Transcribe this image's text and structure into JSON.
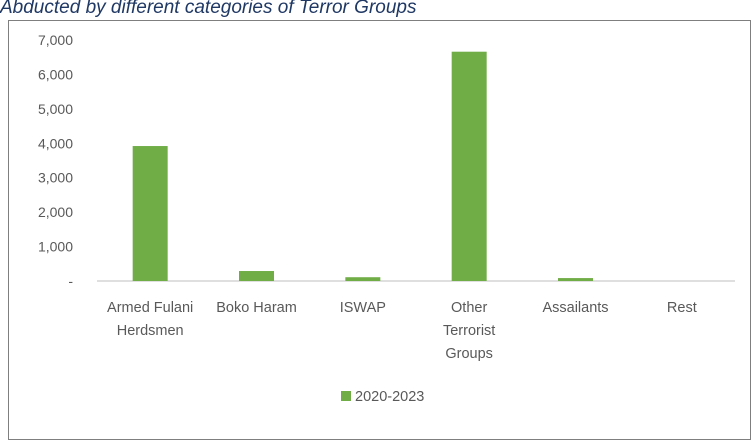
{
  "caption": "Abducted by different categories of Terror Groups",
  "colors": {
    "series": "#70ad47",
    "axis": "#bfbfbf",
    "text": "#595959"
  },
  "chart_data": {
    "type": "bar",
    "title": "",
    "xlabel": "",
    "ylabel": "",
    "ylim": [
      0,
      7000
    ],
    "y_ticks": [
      {
        "value": 0,
        "label": "-"
      },
      {
        "value": 1000,
        "label": "1,000"
      },
      {
        "value": 2000,
        "label": "2,000"
      },
      {
        "value": 3000,
        "label": "3,000"
      },
      {
        "value": 4000,
        "label": "4,000"
      },
      {
        "value": 5000,
        "label": "5,000"
      },
      {
        "value": 6000,
        "label": "6,000"
      },
      {
        "value": 7000,
        "label": "7,000"
      }
    ],
    "categories": [
      [
        "Armed Fulani",
        "Herdsmen"
      ],
      [
        "Boko Haram"
      ],
      [
        "ISWAP"
      ],
      [
        "Other",
        "Terrorist",
        "Groups"
      ],
      [
        "Assailants"
      ],
      [
        "Rest"
      ]
    ],
    "series": [
      {
        "name": "2020-2023",
        "values": [
          3920,
          290,
          110,
          6660,
          85,
          0
        ]
      }
    ],
    "grid": false,
    "legend": "bottom"
  }
}
